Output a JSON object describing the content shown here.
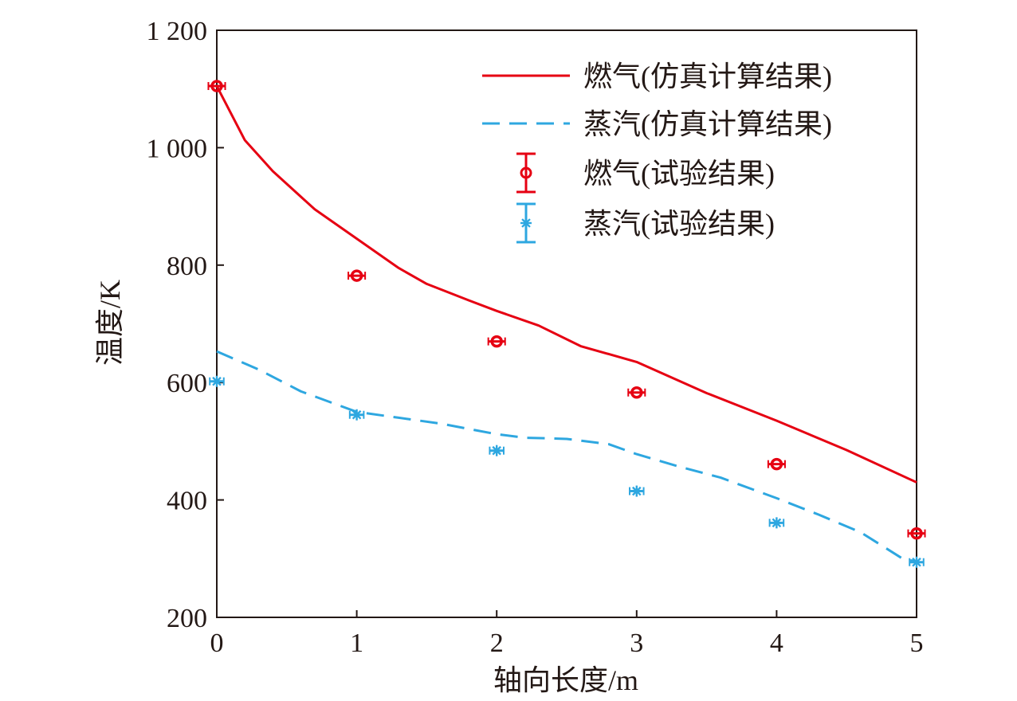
{
  "chart_data": {
    "type": "line",
    "xlabel": "轴向长度/m",
    "ylabel": "温度/K",
    "xlim": [
      0,
      5
    ],
    "ylim": [
      200,
      1200
    ],
    "x_ticks": [
      0,
      1,
      2,
      3,
      4,
      5
    ],
    "x_tick_labels": [
      "0",
      "1",
      "2",
      "3",
      "4",
      "5"
    ],
    "y_ticks": [
      200,
      400,
      600,
      800,
      1000,
      1200
    ],
    "y_tick_labels": [
      "200",
      "400",
      "600",
      "800",
      "1 000",
      "1 200"
    ],
    "grid": false,
    "legend_position": "top-right",
    "series": [
      {
        "name": "燃气(仿真计算结果)",
        "kind": "line",
        "style": "solid",
        "color": "#e60012",
        "x": [
          0,
          0.2,
          0.4,
          0.7,
          1.0,
          1.3,
          1.5,
          1.8,
          2.0,
          2.3,
          2.6,
          3.0,
          3.5,
          4.0,
          4.5,
          5.0
        ],
        "y": [
          1105,
          1013,
          960,
          895,
          845,
          795,
          768,
          740,
          722,
          697,
          662,
          635,
          582,
          535,
          485,
          430
        ]
      },
      {
        "name": "蒸汽(仿真计算结果)",
        "kind": "line",
        "style": "dashed",
        "color": "#2ea7e0",
        "x": [
          0,
          0.3,
          0.6,
          1.0,
          1.3,
          1.6,
          2.0,
          2.2,
          2.5,
          2.8,
          3.0,
          3.3,
          3.6,
          4.0,
          4.3,
          4.6,
          4.9,
          5.0
        ],
        "y": [
          653,
          622,
          585,
          550,
          540,
          530,
          512,
          506,
          504,
          495,
          478,
          457,
          438,
          403,
          375,
          345,
          300,
          295
        ]
      },
      {
        "name": "燃气(试验结果)",
        "kind": "scatter",
        "marker": "circle",
        "color": "#e60012",
        "x": [
          0,
          1,
          2,
          3,
          4,
          5
        ],
        "y": [
          1105,
          782,
          670,
          583,
          461,
          343
        ],
        "error_x": 0.06
      },
      {
        "name": "蒸汽(试验结果)",
        "kind": "scatter",
        "marker": "asterisk",
        "color": "#2ea7e0",
        "x": [
          0,
          1,
          2,
          3,
          4,
          5
        ],
        "y": [
          602,
          545,
          484,
          415,
          361,
          294
        ],
        "error_x": 0.05
      }
    ]
  }
}
